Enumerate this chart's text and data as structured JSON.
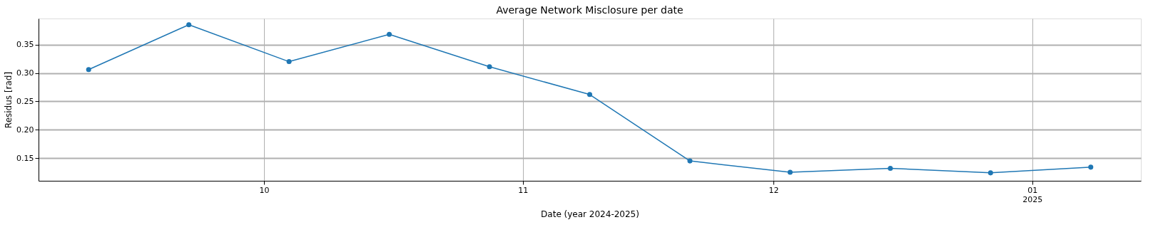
{
  "chart_data": {
    "type": "line",
    "title": "Average Network Misclosure per date",
    "xlabel": "Date (year 2024-2025)",
    "ylabel": "Residus [rad]",
    "x": [
      "2024-09-10",
      "2024-09-22",
      "2024-10-04",
      "2024-10-16",
      "2024-10-28",
      "2024-11-09",
      "2024-11-21",
      "2024-12-03",
      "2024-12-15",
      "2024-12-27",
      "2025-01-08"
    ],
    "series": [
      {
        "color": "#1f77b4",
        "values": [
          0.306,
          0.385,
          0.32,
          0.368,
          0.311,
          0.262,
          0.145,
          0.125,
          0.132,
          0.124,
          0.134
        ]
      }
    ],
    "xlim": [
      "2024-09-04",
      "2025-01-14"
    ],
    "xticks": [
      {
        "value": "2024-10-01",
        "label": "10"
      },
      {
        "value": "2024-11-01",
        "label": "11"
      },
      {
        "value": "2024-12-01",
        "label": "12"
      },
      {
        "value": "2025-01-01",
        "label": "01\n2025"
      }
    ],
    "ylim": [
      0.11,
      0.396
    ],
    "yticks": [
      {
        "value": 0.15,
        "label": "0.15"
      },
      {
        "value": 0.2,
        "label": "0.20"
      },
      {
        "value": 0.25,
        "label": "0.25"
      },
      {
        "value": 0.3,
        "label": "0.30"
      },
      {
        "value": 0.35,
        "label": "0.35"
      }
    ],
    "grid": true,
    "marker": "circle",
    "line_style": "solid"
  }
}
